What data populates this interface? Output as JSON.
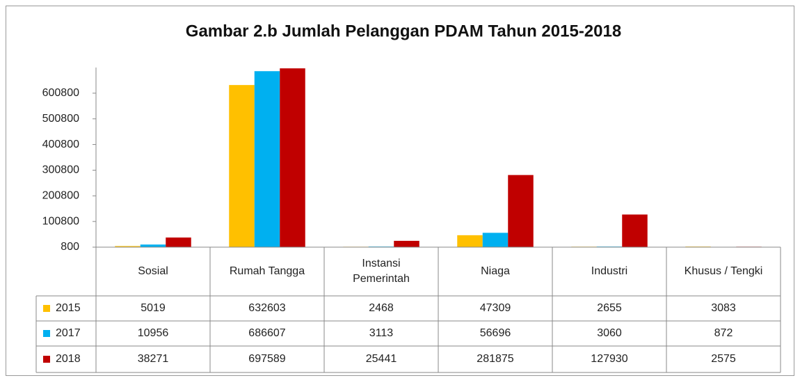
{
  "chart_data": {
    "type": "bar",
    "title": "Gambar 2.b Jumlah Pelanggan PDAM Tahun 2015-2018",
    "categories": [
      "Sosial",
      "Rumah Tangga",
      "Instansi Pemerintah",
      "Niaga",
      "Industri",
      "Khusus / Tengki"
    ],
    "series": [
      {
        "name": "2015",
        "color": "#FFC000",
        "values": [
          5019,
          632603,
          2468,
          47309,
          2655,
          3083
        ]
      },
      {
        "name": "2017",
        "color": "#00B0F0",
        "values": [
          10956,
          686607,
          3113,
          56696,
          3060,
          872
        ]
      },
      {
        "name": "2018",
        "color": "#C00000",
        "values": [
          38271,
          697589,
          25441,
          281875,
          127930,
          2575
        ]
      }
    ],
    "ylim": [
      800,
      700800
    ],
    "yticks": [
      800,
      100800,
      200800,
      300800,
      400800,
      500800,
      600800
    ],
    "grid": false,
    "legend": "data-table"
  }
}
